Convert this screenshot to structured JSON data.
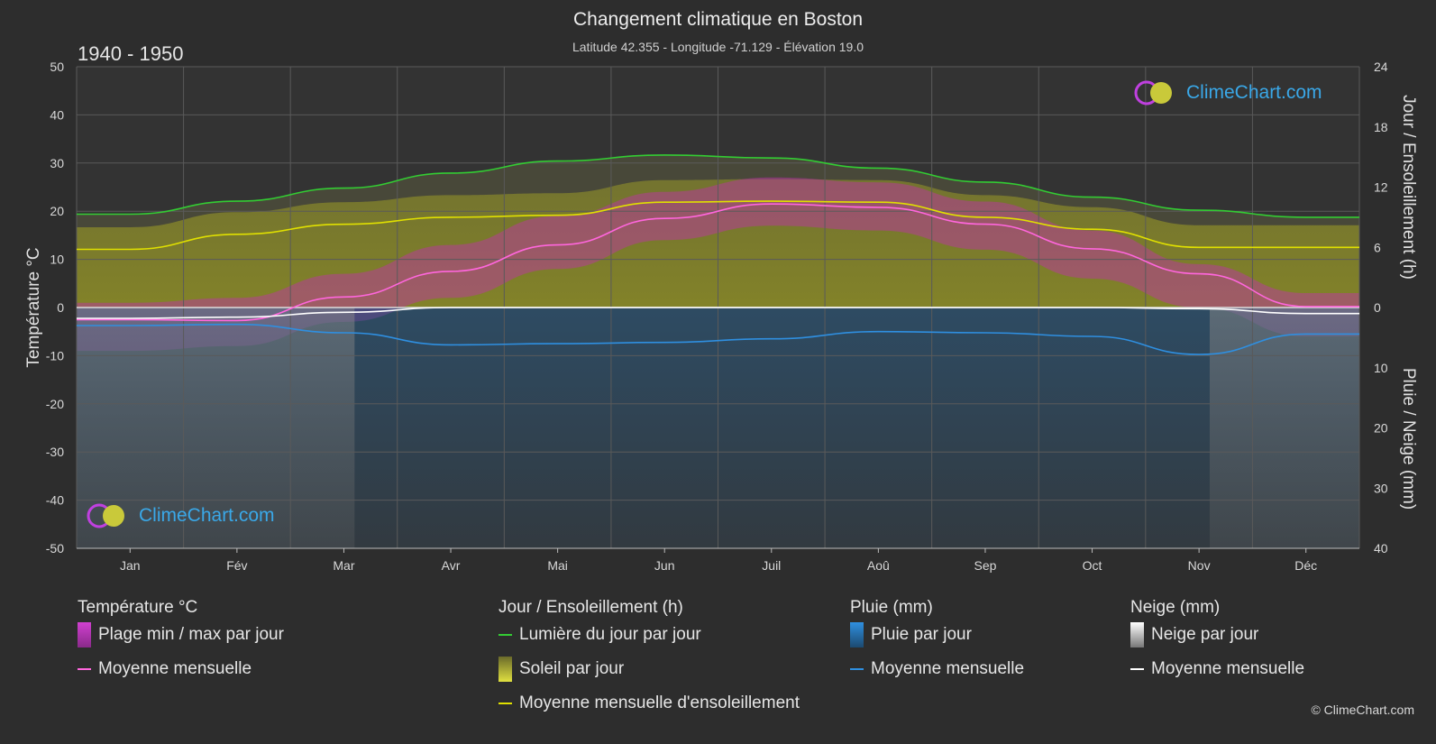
{
  "header": {
    "title": "Changement climatique en Boston",
    "subtitle": "Latitude 42.355 - Longitude -71.129 - Élévation 19.0",
    "period": "1940 - 1950"
  },
  "logo_text": "ClimeChart.com",
  "copyright": "© ClimeChart.com",
  "colors": {
    "background": "#2d2d2d",
    "daylight": "#33cc33",
    "sunshine_mean": "#e0e000",
    "sunshine_fill": "#8c8c2a",
    "temp_mean": "#ff66dd",
    "temp_range": "#c02fb0",
    "rain_mean": "#2f8fe0",
    "rain_fill": "#2a5f8a",
    "snow_mean": "#ffffff",
    "snow_fill": "#777777"
  },
  "chart_data": {
    "type": "area",
    "categories": [
      "Jan",
      "Fév",
      "Mar",
      "Avr",
      "Mai",
      "Jun",
      "Juil",
      "Aoû",
      "Sep",
      "Oct",
      "Nov",
      "Déc"
    ],
    "left_axis": {
      "label": "Température °C",
      "range": [
        -50,
        50
      ],
      "ticks": [
        50,
        40,
        30,
        20,
        10,
        0,
        -10,
        -20,
        -30,
        -40,
        -50
      ]
    },
    "right_axis_top": {
      "label": "Jour / Ensoleillement (h)",
      "range": [
        0,
        24
      ],
      "ticks": [
        24,
        18,
        12,
        6,
        0
      ]
    },
    "right_axis_bottom": {
      "label": "Pluie / Neige (mm)",
      "range": [
        0,
        40
      ],
      "ticks": [
        0,
        10,
        20,
        30,
        40
      ]
    },
    "grid": true,
    "series": [
      {
        "name": "Lumière du jour par jour",
        "axis": "hours",
        "values": [
          9.3,
          10.6,
          11.9,
          13.4,
          14.6,
          15.2,
          14.9,
          13.9,
          12.5,
          11.0,
          9.7,
          9.0
        ]
      },
      {
        "name": "Moyenne mensuelle d'ensoleillement",
        "axis": "hours",
        "values": [
          5.8,
          7.3,
          8.3,
          9.0,
          9.2,
          10.5,
          10.6,
          10.5,
          9.0,
          7.8,
          6.0,
          6.0
        ]
      },
      {
        "name": "Temperature daily max (range top)",
        "axis": "temp",
        "values": [
          1,
          2,
          7,
          13,
          19,
          24,
          27,
          26,
          22,
          16,
          9,
          3
        ]
      },
      {
        "name": "Temperature daily min (range bottom)",
        "axis": "temp",
        "values": [
          -9,
          -8,
          -3,
          2,
          8,
          14,
          17,
          16,
          12,
          6,
          0,
          -6
        ]
      },
      {
        "name": "Moyenne mensuelle (température)",
        "axis": "temp",
        "values": [
          -2.5,
          -2.7,
          2.2,
          7.5,
          13.0,
          18.5,
          21.5,
          20.8,
          17.3,
          12.2,
          7.0,
          0.2
        ]
      },
      {
        "name": "Moyenne mensuelle (pluie)",
        "axis": "precip",
        "values": [
          3.0,
          2.8,
          4.2,
          6.2,
          6.0,
          5.8,
          5.2,
          4.0,
          4.2,
          4.8,
          7.8,
          4.4
        ]
      },
      {
        "name": "Moyenne mensuelle (neige)",
        "axis": "precip",
        "values": [
          1.8,
          1.6,
          0.8,
          0.0,
          0.0,
          0.0,
          0.0,
          0.0,
          0.0,
          0.0,
          0.2,
          1.0
        ]
      }
    ]
  },
  "legend": {
    "temperature": {
      "title": "Température °C",
      "range_label": "Plage min / max par jour",
      "mean_label": "Moyenne mensuelle"
    },
    "sun": {
      "title": "Jour / Ensoleillement (h)",
      "daylight_label": "Lumière du jour par jour",
      "sunshine_label": "Soleil par jour",
      "mean_label": "Moyenne mensuelle d'ensoleillement"
    },
    "rain": {
      "title": "Pluie (mm)",
      "daily_label": "Pluie par jour",
      "mean_label": "Moyenne mensuelle"
    },
    "snow": {
      "title": "Neige (mm)",
      "daily_label": "Neige par jour",
      "mean_label": "Moyenne mensuelle"
    }
  }
}
